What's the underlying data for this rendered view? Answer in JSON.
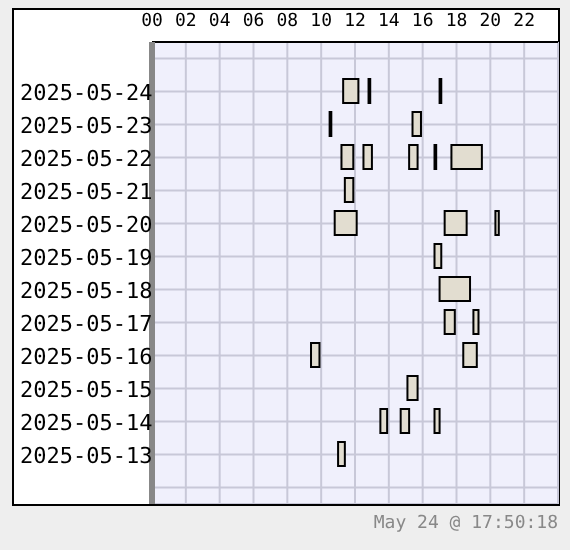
{
  "chart_data": {
    "type": "bar",
    "orientation": "horizontal",
    "grid": true,
    "categories": [
      null,
      "2025-05-24",
      "2025-05-23",
      "2025-05-22",
      "2025-05-21",
      "2025-05-20",
      "2025-05-19",
      "2025-05-18",
      "2025-05-17",
      "2025-05-16",
      "2025-05-15",
      "2025-05-14",
      "2025-05-13",
      null
    ],
    "xlim": [
      0,
      24
    ],
    "xticks": [
      {
        "value": 0,
        "label": "00"
      },
      {
        "value": 2,
        "label": "02"
      },
      {
        "value": 4,
        "label": "04"
      },
      {
        "value": 6,
        "label": "06"
      },
      {
        "value": 8,
        "label": "08"
      },
      {
        "value": 10,
        "label": "10"
      },
      {
        "value": 12,
        "label": "12"
      },
      {
        "value": 14,
        "label": "14"
      },
      {
        "value": 16,
        "label": "16"
      },
      {
        "value": 18,
        "label": "18"
      },
      {
        "value": 20,
        "label": "20"
      },
      {
        "value": 22,
        "label": "22"
      }
    ],
    "series": [
      {
        "color": "#e2ddd0",
        "base": [
          null,
          11.3,
          10.5,
          11.2,
          11.4,
          10.8,
          16.7,
          17.0,
          17.3,
          9.4,
          15.1,
          13.5,
          11.0,
          null
        ],
        "values": [
          null,
          0.9,
          0.1,
          0.7,
          0.5,
          1.3,
          0.4,
          1.8,
          0.6,
          0.5,
          0.6,
          0.4,
          0.4,
          null
        ]
      },
      {
        "color": "#e2ddd0",
        "base": [
          null,
          12.8,
          15.4,
          12.5,
          null,
          17.3,
          null,
          null,
          19.0,
          18.4,
          null,
          14.7,
          null,
          null
        ],
        "values": [
          null,
          0.1,
          0.5,
          0.5,
          null,
          1.3,
          null,
          null,
          0.3,
          0.8,
          null,
          0.5,
          null,
          null
        ]
      },
      {
        "color": "#e2ddd0",
        "base": [
          null,
          17.0,
          null,
          15.2,
          null,
          20.3,
          null,
          null,
          null,
          null,
          null,
          16.7,
          null,
          null
        ],
        "values": [
          null,
          0.1,
          null,
          0.5,
          null,
          0.2,
          null,
          null,
          null,
          null,
          null,
          0.3,
          null,
          null
        ]
      },
      {
        "color": "#e2ddd0",
        "base": [
          null,
          null,
          null,
          16.7,
          null,
          null,
          null,
          null,
          null,
          null,
          null,
          null,
          null,
          null
        ],
        "values": [
          null,
          null,
          null,
          0.1,
          null,
          null,
          null,
          null,
          null,
          null,
          null,
          null,
          null,
          null
        ]
      },
      {
        "color": "#e2ddd0",
        "base": [
          null,
          null,
          null,
          17.7,
          null,
          null,
          null,
          null,
          null,
          null,
          null,
          null,
          null,
          null
        ],
        "values": [
          null,
          null,
          null,
          1.8,
          null,
          null,
          null,
          null,
          null,
          null,
          null,
          null,
          null,
          null
        ]
      }
    ],
    "annotations": [
      "May 24 @ 17:50:18"
    ]
  }
}
